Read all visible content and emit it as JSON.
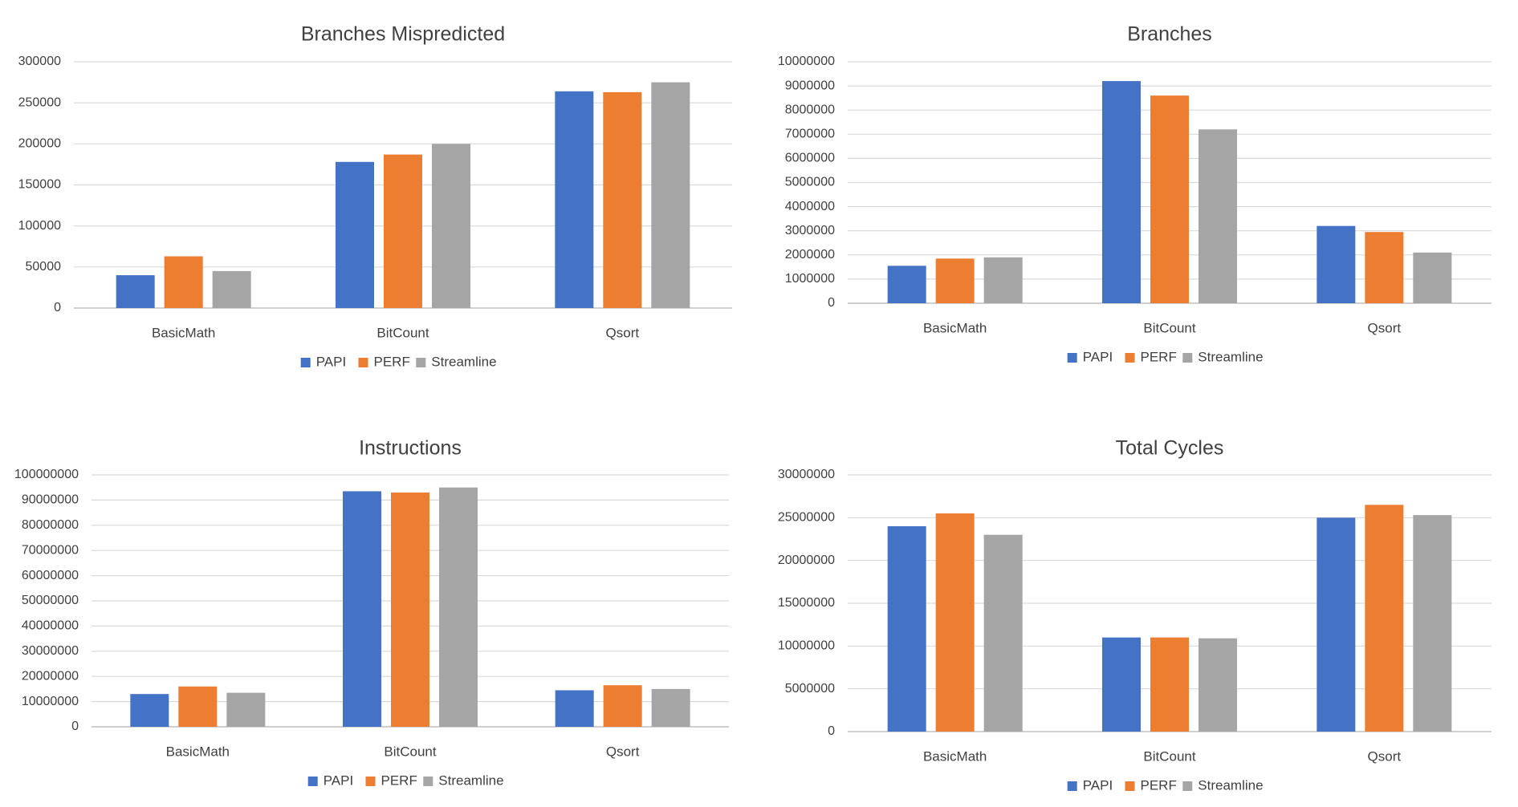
{
  "colors": {
    "PAPI": "#4472c4",
    "PERF": "#ed7d31",
    "Streamline": "#a5a5a5"
  },
  "chart_data": [
    {
      "type": "bar",
      "title": "Branches Mispredicted",
      "categories": [
        "BasicMath",
        "BitCount",
        "Qsort"
      ],
      "series": [
        {
          "name": "PAPI",
          "values": [
            40000,
            178000,
            264000
          ]
        },
        {
          "name": "PERF",
          "values": [
            63000,
            187000,
            263000
          ]
        },
        {
          "name": "Streamline",
          "values": [
            45000,
            200000,
            275000
          ]
        }
      ],
      "ylim": [
        0,
        300000
      ],
      "yticks": [
        "0",
        "50000",
        "100000",
        "150000",
        "200000",
        "250000",
        "300000"
      ],
      "ytick_values": [
        0,
        50000,
        100000,
        150000,
        200000,
        250000,
        300000
      ],
      "grid": true,
      "legend": "bottom"
    },
    {
      "type": "bar",
      "title": "Branches",
      "categories": [
        "BasicMath",
        "BitCount",
        "Qsort"
      ],
      "series": [
        {
          "name": "PAPI",
          "values": [
            1550000,
            9200000,
            3200000
          ]
        },
        {
          "name": "PERF",
          "values": [
            1850000,
            8600000,
            2950000
          ]
        },
        {
          "name": "Streamline",
          "values": [
            1900000,
            7200000,
            2100000
          ]
        }
      ],
      "ylim": [
        0,
        10000000
      ],
      "yticks": [
        "0",
        "1000000",
        "2000000",
        "3000000",
        "4000000",
        "5000000",
        "6000000",
        "7000000",
        "8000000",
        "9000000",
        "10000000"
      ],
      "ytick_values": [
        0,
        1000000,
        2000000,
        3000000,
        4000000,
        5000000,
        6000000,
        7000000,
        8000000,
        9000000,
        10000000
      ],
      "grid": true,
      "legend": "bottom"
    },
    {
      "type": "bar",
      "title": "Instructions",
      "categories": [
        "BasicMath",
        "BitCount",
        "Qsort"
      ],
      "series": [
        {
          "name": "PAPI",
          "values": [
            13000000,
            93500000,
            14500000
          ]
        },
        {
          "name": "PERF",
          "values": [
            16000000,
            93000000,
            16500000
          ]
        },
        {
          "name": "Streamline",
          "values": [
            13500000,
            95000000,
            15000000
          ]
        }
      ],
      "ylim": [
        0,
        100000000
      ],
      "yticks": [
        "0",
        "10000000",
        "20000000",
        "30000000",
        "40000000",
        "50000000",
        "60000000",
        "70000000",
        "80000000",
        "90000000",
        "100000000"
      ],
      "ytick_values": [
        0,
        10000000,
        20000000,
        30000000,
        40000000,
        50000000,
        60000000,
        70000000,
        80000000,
        90000000,
        100000000
      ],
      "grid": true,
      "legend": "bottom"
    },
    {
      "type": "bar",
      "title": "Total Cycles",
      "categories": [
        "BasicMath",
        "BitCount",
        "Qsort"
      ],
      "series": [
        {
          "name": "PAPI",
          "values": [
            24000000,
            11000000,
            25000000
          ]
        },
        {
          "name": "PERF",
          "values": [
            25500000,
            11000000,
            26500000
          ]
        },
        {
          "name": "Streamline",
          "values": [
            23000000,
            10900000,
            25300000
          ]
        }
      ],
      "ylim": [
        0,
        30000000
      ],
      "yticks": [
        "0",
        "5000000",
        "10000000",
        "15000000",
        "20000000",
        "25000000",
        "30000000"
      ],
      "ytick_values": [
        0,
        5000000,
        10000000,
        15000000,
        20000000,
        25000000,
        30000000
      ],
      "grid": true,
      "legend": "bottom"
    }
  ]
}
